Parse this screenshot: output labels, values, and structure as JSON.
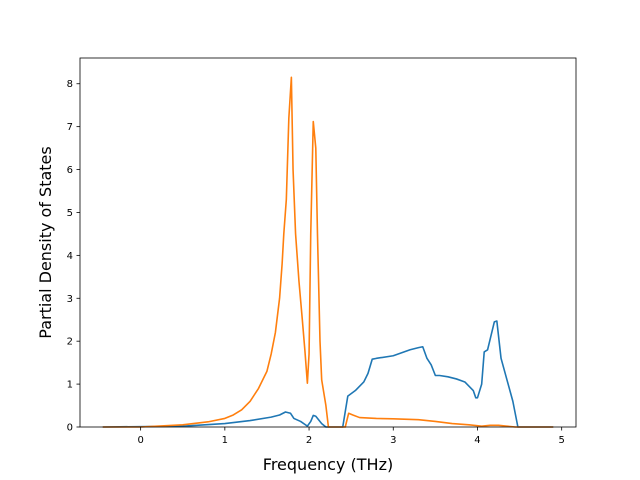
{
  "chart_data": {
    "type": "line",
    "title": "",
    "xlabel": "Frequency (THz)",
    "ylabel": "Partial Density of States",
    "xlim": [
      -0.72,
      5.17
    ],
    "ylim": [
      0,
      8.6
    ],
    "xticks": [
      0,
      1,
      2,
      3,
      4,
      5
    ],
    "yticks": [
      0,
      1,
      2,
      3,
      4,
      5,
      6,
      7,
      8
    ],
    "grid": false,
    "legend": "none",
    "series": [
      {
        "color": "#1f77b4",
        "points": [
          [
            -0.45,
            0
          ],
          [
            0.5,
            0.02
          ],
          [
            1.0,
            0.08
          ],
          [
            1.3,
            0.15
          ],
          [
            1.55,
            0.23
          ],
          [
            1.65,
            0.28
          ],
          [
            1.72,
            0.35
          ],
          [
            1.78,
            0.32
          ],
          [
            1.82,
            0.2
          ],
          [
            1.9,
            0.13
          ],
          [
            1.98,
            0.02
          ],
          [
            2.02,
            0.13
          ],
          [
            2.05,
            0.27
          ],
          [
            2.08,
            0.25
          ],
          [
            2.15,
            0.08
          ],
          [
            2.2,
            0
          ],
          [
            2.4,
            0
          ],
          [
            2.46,
            0.72
          ],
          [
            2.55,
            0.85
          ],
          [
            2.65,
            1.05
          ],
          [
            2.7,
            1.25
          ],
          [
            2.75,
            1.58
          ],
          [
            2.8,
            1.6
          ],
          [
            3.0,
            1.66
          ],
          [
            3.2,
            1.8
          ],
          [
            3.3,
            1.85
          ],
          [
            3.35,
            1.87
          ],
          [
            3.4,
            1.6
          ],
          [
            3.45,
            1.45
          ],
          [
            3.5,
            1.2
          ],
          [
            3.55,
            1.2
          ],
          [
            3.65,
            1.17
          ],
          [
            3.75,
            1.12
          ],
          [
            3.85,
            1.05
          ],
          [
            3.95,
            0.85
          ],
          [
            3.98,
            0.68
          ],
          [
            4.0,
            0.68
          ],
          [
            4.05,
            1.0
          ],
          [
            4.08,
            1.75
          ],
          [
            4.12,
            1.8
          ],
          [
            4.2,
            2.45
          ],
          [
            4.23,
            2.47
          ],
          [
            4.28,
            1.6
          ],
          [
            4.35,
            1.1
          ],
          [
            4.42,
            0.6
          ],
          [
            4.48,
            0
          ],
          [
            4.9,
            0
          ]
        ]
      },
      {
        "color": "#ff7f0e",
        "points": [
          [
            -0.45,
            0
          ],
          [
            0.0,
            0
          ],
          [
            0.5,
            0.05
          ],
          [
            0.8,
            0.12
          ],
          [
            1.0,
            0.2
          ],
          [
            1.1,
            0.28
          ],
          [
            1.2,
            0.4
          ],
          [
            1.3,
            0.6
          ],
          [
            1.4,
            0.9
          ],
          [
            1.5,
            1.3
          ],
          [
            1.55,
            1.7
          ],
          [
            1.6,
            2.2
          ],
          [
            1.65,
            3.0
          ],
          [
            1.68,
            3.8
          ],
          [
            1.7,
            4.5
          ],
          [
            1.73,
            5.3
          ],
          [
            1.76,
            7.2
          ],
          [
            1.79,
            8.15
          ],
          [
            1.81,
            6.0
          ],
          [
            1.84,
            4.5
          ],
          [
            1.88,
            3.4
          ],
          [
            1.92,
            2.5
          ],
          [
            1.95,
            1.8
          ],
          [
            1.98,
            1.02
          ],
          [
            2.0,
            1.7
          ],
          [
            2.02,
            4.5
          ],
          [
            2.05,
            7.12
          ],
          [
            2.08,
            6.5
          ],
          [
            2.1,
            4.5
          ],
          [
            2.13,
            2.0
          ],
          [
            2.15,
            1.1
          ],
          [
            2.2,
            0.5
          ],
          [
            2.23,
            0
          ],
          [
            2.43,
            0
          ],
          [
            2.47,
            0.32
          ],
          [
            2.52,
            0.28
          ],
          [
            2.6,
            0.22
          ],
          [
            2.8,
            0.2
          ],
          [
            3.0,
            0.19
          ],
          [
            3.3,
            0.17
          ],
          [
            3.5,
            0.13
          ],
          [
            3.7,
            0.08
          ],
          [
            3.9,
            0.05
          ],
          [
            4.05,
            0.02
          ],
          [
            4.15,
            0.04
          ],
          [
            4.25,
            0.04
          ],
          [
            4.35,
            0.02
          ],
          [
            4.45,
            0
          ],
          [
            4.9,
            0
          ]
        ]
      }
    ]
  }
}
